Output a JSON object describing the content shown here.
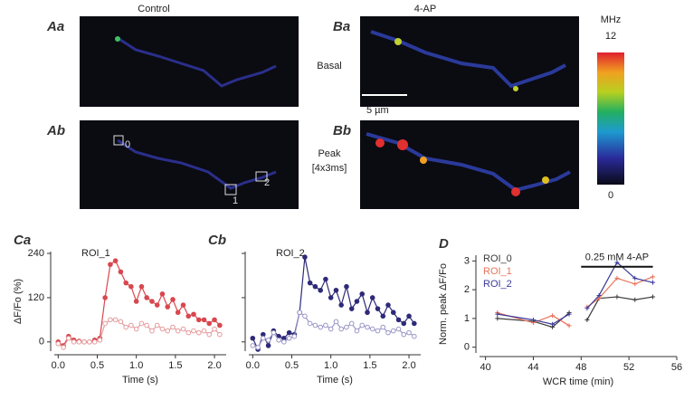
{
  "images": {
    "columns": [
      "Control",
      "4-AP"
    ],
    "panel_labels": [
      "Aa",
      "Ba",
      "Ab",
      "Bb"
    ],
    "rows": [
      "Basal",
      "Peak",
      "[4x3ms]"
    ],
    "roi_labels": [
      "0",
      "1",
      "2"
    ],
    "scale_bar": "5 µm",
    "colorbar": {
      "unit": "MHz",
      "max": 12,
      "min": 0
    }
  },
  "chart_data": [
    {
      "type": "line",
      "label": "Ca",
      "title": "ROI_1",
      "x_label": "Time (s)",
      "y_label": "ΔF/Fo (%)",
      "x": [
        0,
        0.067,
        0.133,
        0.2,
        0.267,
        0.333,
        0.4,
        0.467,
        0.533,
        0.6,
        0.667,
        0.733,
        0.8,
        0.867,
        0.933,
        1.0,
        1.067,
        1.133,
        1.2,
        1.267,
        1.333,
        1.4,
        1.467,
        1.533,
        1.6,
        1.667,
        1.733,
        1.8,
        1.867,
        1.933,
        2.0,
        2.067
      ],
      "series": [
        {
          "color": "#d8474f",
          "marker": "filled",
          "values": [
            0,
            -10,
            15,
            5,
            2,
            0,
            0,
            5,
            10,
            120,
            210,
            220,
            190,
            160,
            150,
            110,
            150,
            120,
            110,
            100,
            130,
            95,
            115,
            80,
            100,
            70,
            75,
            60,
            60,
            50,
            60,
            45
          ]
        },
        {
          "color": "#e59a9c",
          "marker": "open",
          "values": [
            -5,
            -15,
            10,
            0,
            0,
            0,
            0,
            0,
            5,
            50,
            60,
            60,
            55,
            40,
            45,
            35,
            50,
            45,
            30,
            45,
            35,
            30,
            40,
            30,
            35,
            25,
            30,
            25,
            30,
            20,
            35,
            20
          ]
        }
      ],
      "xlim": [
        -0.05,
        2.15
      ],
      "ylim": [
        -25,
        245
      ],
      "xticks": [
        {
          "value": 0,
          "label": "0.0"
        },
        {
          "value": 0.5,
          "label": "0.5"
        },
        {
          "value": 1,
          "label": "1.0"
        },
        {
          "value": 1.5,
          "label": "1.5"
        },
        {
          "value": 2,
          "label": "2.0"
        }
      ],
      "yticks": [
        0,
        120,
        240
      ]
    },
    {
      "type": "line",
      "label": "Cb",
      "title": "ROI_2",
      "x_label": "Time (s)",
      "x": [
        0,
        0.067,
        0.133,
        0.2,
        0.267,
        0.333,
        0.4,
        0.467,
        0.533,
        0.6,
        0.667,
        0.733,
        0.8,
        0.867,
        0.933,
        1.0,
        1.067,
        1.133,
        1.2,
        1.267,
        1.333,
        1.4,
        1.467,
        1.533,
        1.6,
        1.667,
        1.733,
        1.8,
        1.867,
        1.933,
        2.0,
        2.067
      ],
      "series": [
        {
          "color": "#2e2a78",
          "marker": "filled",
          "values": [
            10,
            -20,
            20,
            -10,
            30,
            15,
            10,
            25,
            20,
            80,
            230,
            160,
            150,
            140,
            170,
            120,
            140,
            100,
            150,
            90,
            110,
            130,
            80,
            120,
            90,
            70,
            100,
            80,
            60,
            50,
            70,
            50
          ]
        },
        {
          "color": "#9a95c8",
          "marker": "open",
          "values": [
            -10,
            -15,
            10,
            5,
            25,
            5,
            0,
            10,
            15,
            80,
            70,
            50,
            45,
            40,
            45,
            35,
            55,
            35,
            40,
            50,
            30,
            45,
            40,
            35,
            30,
            40,
            25,
            30,
            35,
            20,
            25,
            15
          ]
        }
      ],
      "xlim": [
        -0.05,
        2.15
      ],
      "ylim": [
        -25,
        245
      ],
      "xticks": [
        {
          "value": 0,
          "label": "0.0"
        },
        {
          "value": 0.5,
          "label": "0.5"
        },
        {
          "value": 1,
          "label": "1.0"
        },
        {
          "value": 1.5,
          "label": "1.5"
        },
        {
          "value": 2,
          "label": "2.0"
        }
      ],
      "yticks": [
        0,
        120,
        240
      ],
      "ytick_labels": false
    },
    {
      "type": "line",
      "label": "D",
      "x_label": "WCR time (min)",
      "y_label": "Norm. peak ΔF/Fo",
      "x": [
        41,
        44,
        45.6,
        47,
        47.8,
        48.5,
        49.5,
        51,
        52.5,
        54
      ],
      "series": [
        {
          "name": "ROI_0",
          "color": "#3a3a3a",
          "marker": "plus",
          "values": [
            1.0,
            0.9,
            0.7,
            1.2,
            null,
            0.95,
            1.7,
            1.75,
            1.65,
            1.75
          ]
        },
        {
          "name": "ROI_1",
          "color": "#e8735a",
          "marker": "plus",
          "values": [
            1.2,
            0.85,
            1.1,
            0.75,
            null,
            1.4,
            1.7,
            2.4,
            2.2,
            2.45
          ]
        },
        {
          "name": "ROI_2",
          "color": "#3b3a9a",
          "marker": "plus",
          "values": [
            1.15,
            0.95,
            0.8,
            1.15,
            null,
            1.35,
            1.8,
            2.95,
            2.4,
            2.25
          ]
        }
      ],
      "annotation": {
        "text": "0.25 mM 4-AP",
        "x": [
          48,
          54
        ],
        "y": 2.8
      },
      "xlim": [
        39.5,
        56
      ],
      "ylim": [
        -0.2,
        3.2
      ],
      "xticks": [
        40,
        44,
        48,
        52,
        56
      ],
      "yticks": [
        0,
        1,
        2,
        3
      ],
      "legend": "top-left"
    }
  ]
}
